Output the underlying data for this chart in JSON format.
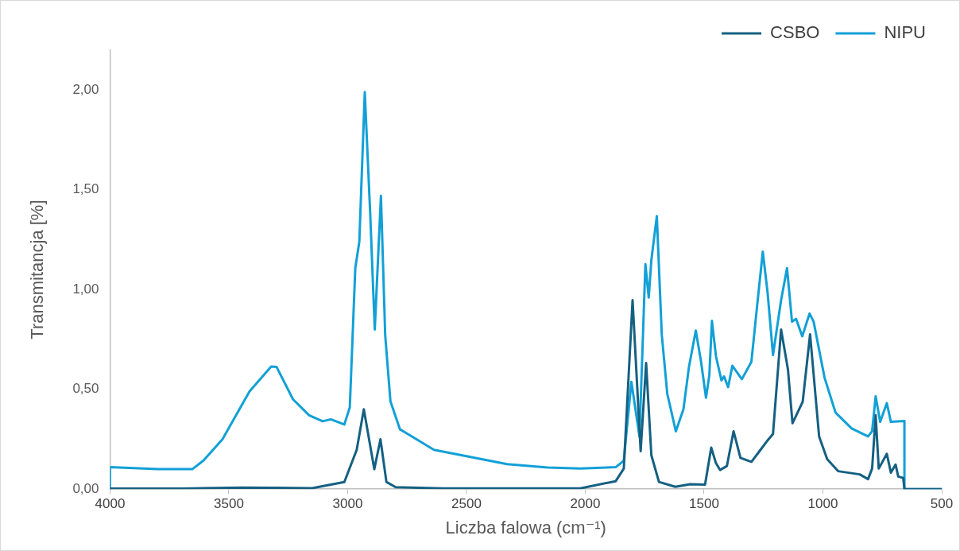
{
  "chart_data": {
    "type": "line",
    "xlabel": "Liczba falowa (cm⁻¹)",
    "ylabel": "Transmitancja [%]",
    "xlim": [
      4000,
      500
    ],
    "xticks": [
      4000,
      3500,
      3000,
      2500,
      2000,
      1500,
      1000,
      500
    ],
    "ylim": [
      0,
      2.2
    ],
    "yticks": [
      {
        "value": 0,
        "label": "0,00"
      },
      {
        "value": 0.5,
        "label": "0,50"
      },
      {
        "value": 1,
        "label": "1,00"
      },
      {
        "value": 1.5,
        "label": "1,50"
      },
      {
        "value": 2,
        "label": "2,00"
      }
    ],
    "grid": false,
    "legend": "top right",
    "marker": "none",
    "line_style": "solid",
    "series": [
      {
        "name": "CSBO",
        "color": "#156082",
        "x": [
          4000,
          3700,
          3450,
          3300,
          3150,
          3014,
          2962,
          2932,
          2888,
          2862,
          2837,
          2798,
          2600,
          2300,
          2021,
          1872,
          1838,
          1801,
          1767,
          1744,
          1722,
          1690,
          1621,
          1559,
          1496,
          1470,
          1450,
          1433,
          1404,
          1376,
          1347,
          1301,
          1267,
          1233,
          1210,
          1176,
          1147,
          1128,
          1085,
          1054,
          1016,
          982,
          936,
          845,
          810,
          793,
          778,
          765,
          731,
          714,
          694,
          683,
          662,
          657,
          500
        ],
        "values": [
          0.003,
          0.003,
          0.008,
          0.007,
          0.005,
          0.036,
          0.197,
          0.4,
          0.1,
          0.25,
          0.036,
          0.01,
          0.004,
          0.004,
          0.004,
          0.04,
          0.103,
          0.947,
          0.19,
          0.632,
          0.17,
          0.036,
          0.012,
          0.025,
          0.023,
          0.208,
          0.13,
          0.096,
          0.116,
          0.29,
          0.157,
          0.137,
          0.19,
          0.244,
          0.277,
          0.8,
          0.598,
          0.33,
          0.438,
          0.776,
          0.264,
          0.15,
          0.09,
          0.074,
          0.05,
          0.103,
          0.37,
          0.103,
          0.177,
          0.083,
          0.123,
          0.063,
          0.056,
          0,
          0
        ]
      },
      {
        "name": "NIPU",
        "color": "#12a0d7",
        "x": [
          4000,
          4000,
          3800,
          3654,
          3607,
          3527,
          3413,
          3322,
          3299,
          3230,
          3162,
          3105,
          3071,
          3014,
          2991,
          2968,
          2951,
          2928,
          2905,
          2886,
          2860,
          2842,
          2820,
          2780,
          2637,
          2329,
          2158,
          2021,
          1872,
          1838,
          1806,
          1772,
          1747,
          1733,
          1722,
          1699,
          1678,
          1655,
          1619,
          1587,
          1564,
          1535,
          1513,
          1492,
          1478,
          1467,
          1450,
          1427,
          1416,
          1399,
          1381,
          1341,
          1301,
          1278,
          1253,
          1233,
          1210,
          1176,
          1151,
          1130,
          1113,
          1087,
          1056,
          1039,
          993,
          947,
          879,
          810,
          793,
          778,
          759,
          731,
          714,
          657,
          657,
          500
        ],
        "values": [
          0,
          0.11,
          0.1,
          0.1,
          0.143,
          0.25,
          0.49,
          0.614,
          0.612,
          0.45,
          0.37,
          0.34,
          0.35,
          0.324,
          0.41,
          1.107,
          1.24,
          1.99,
          1.375,
          0.8,
          1.47,
          0.77,
          0.44,
          0.3,
          0.197,
          0.125,
          0.108,
          0.103,
          0.11,
          0.143,
          0.538,
          0.264,
          1.127,
          0.96,
          1.147,
          1.368,
          0.772,
          0.478,
          0.29,
          0.4,
          0.61,
          0.795,
          0.64,
          0.458,
          0.571,
          0.843,
          0.665,
          0.545,
          0.565,
          0.511,
          0.618,
          0.551,
          0.638,
          0.906,
          1.19,
          0.987,
          0.672,
          0.947,
          1.107,
          0.839,
          0.853,
          0.766,
          0.88,
          0.839,
          0.558,
          0.384,
          0.304,
          0.264,
          0.29,
          0.465,
          0.337,
          0.431,
          0.337,
          0.341,
          0,
          0
        ]
      }
    ]
  }
}
